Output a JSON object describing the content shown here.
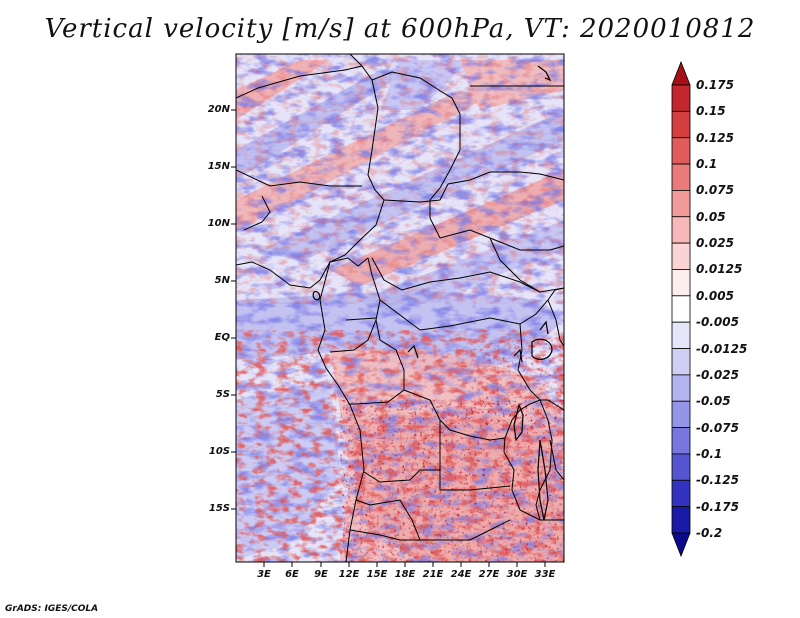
{
  "title": "Vertical velocity [m/s] at 600hPa, VT: 2020010812",
  "map": {
    "region": "Central Africa",
    "variable": "Vertical velocity",
    "units": "m/s",
    "level": "600hPa",
    "valid_time": "2020010812",
    "lat_ticks": [
      "20N",
      "15N",
      "10N",
      "5N",
      "EQ",
      "5S",
      "10S",
      "15S"
    ],
    "lon_ticks": [
      "3E",
      "6E",
      "9E",
      "12E",
      "15E",
      "18E",
      "21E",
      "24E",
      "27E",
      "30E",
      "33E"
    ]
  },
  "colorbar": {
    "labels": [
      "0.175",
      "0.15",
      "0.125",
      "0.1",
      "0.075",
      "0.05",
      "0.025",
      "0.0125",
      "0.005",
      "-0.005",
      "-0.0125",
      "-0.025",
      "-0.05",
      "-0.075",
      "-0.1",
      "-0.125",
      "-0.175",
      "-0.2"
    ],
    "colors": [
      "#a50f15",
      "#c1272d",
      "#d53e3e",
      "#e05c5c",
      "#e97b7b",
      "#f09a9a",
      "#f6b8b8",
      "#fad4d4",
      "#fdeded",
      "#ffffff",
      "#e6e6fb",
      "#cfcff6",
      "#b3b3f0",
      "#9595e8",
      "#7777de",
      "#5555d0",
      "#3333c0",
      "#1a1aa8",
      "#0a0a8a"
    ]
  },
  "credit": "GrADS: IGES/COLA"
}
